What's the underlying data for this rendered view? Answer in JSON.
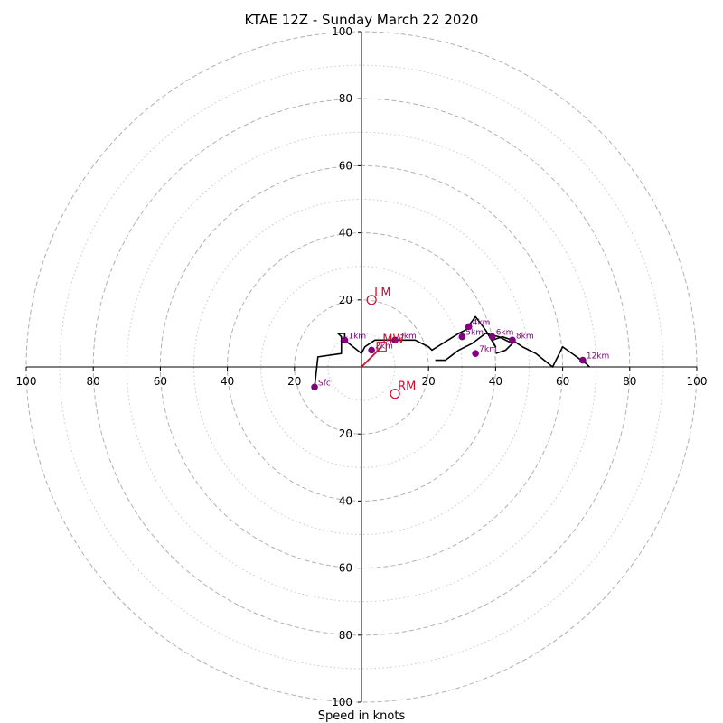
{
  "chart_data": {
    "type": "hodograph",
    "title": "KTAE 12Z - Sunday March 22 2020",
    "xlabel": "Speed in knots",
    "range_knots": [
      0,
      100
    ],
    "ring_major": [
      20,
      40,
      60,
      80,
      100
    ],
    "ring_minor": [
      10,
      30,
      50,
      70,
      90
    ],
    "tick_labels": {
      "left": [
        "100",
        "80",
        "60",
        "40",
        "20"
      ],
      "right": [
        "20",
        "40",
        "60",
        "80",
        "100"
      ],
      "top": [
        "100",
        "80",
        "60",
        "40",
        "20"
      ],
      "bottom": [
        "20",
        "40",
        "60",
        "80",
        "100"
      ]
    },
    "colors": {
      "trace": "#000000",
      "height_marker": "#800080",
      "motion": "#c8102e",
      "ring_major": "#b0b0b0",
      "ring_minor": "#c8c8c8"
    },
    "hodograph_trace": [
      [
        -14,
        -6
      ],
      [
        -13,
        3
      ],
      [
        -6,
        4
      ],
      [
        -6,
        9
      ],
      [
        -7,
        10
      ],
      [
        -5,
        10
      ],
      [
        -5,
        8
      ],
      [
        0,
        4
      ],
      [
        1,
        6
      ],
      [
        4,
        8
      ],
      [
        8,
        8
      ],
      [
        14,
        8
      ],
      [
        16,
        8
      ],
      [
        20,
        6
      ],
      [
        21,
        5
      ],
      [
        29,
        10
      ],
      [
        31,
        11
      ],
      [
        34,
        15
      ],
      [
        37,
        11
      ],
      [
        40,
        6
      ],
      [
        39,
        8
      ],
      [
        42,
        9
      ],
      [
        45,
        8
      ],
      [
        48,
        6
      ],
      [
        52,
        4
      ],
      [
        57,
        0
      ],
      [
        60,
        6
      ],
      [
        67,
        1
      ],
      [
        68,
        0
      ]
    ],
    "height_markers": [
      {
        "label": "Sfc",
        "u": -14,
        "v": -6
      },
      {
        "label": "1km",
        "u": -5,
        "v": 8
      },
      {
        "label": "2km",
        "u": 3,
        "v": 5
      },
      {
        "label": "3km",
        "u": 10,
        "v": 8
      },
      {
        "label": "4km",
        "u": 32,
        "v": 12
      },
      {
        "label": "5km",
        "u": 30,
        "v": 9
      },
      {
        "label": "6km",
        "u": 39,
        "v": 9
      },
      {
        "label": "7km",
        "u": 34,
        "v": 4
      },
      {
        "label": "8km",
        "u": 45,
        "v": 8
      },
      {
        "label": "12km",
        "u": 66,
        "v": 2
      }
    ],
    "storm_motions": [
      {
        "label": "LM",
        "u": 3,
        "v": 20
      },
      {
        "label": "RM",
        "u": 10,
        "v": -8
      },
      {
        "label": "MW",
        "u": 6,
        "v": 6
      }
    ],
    "extra_trace": [
      [
        40,
        4
      ],
      [
        43,
        5
      ],
      [
        45,
        7
      ],
      [
        41,
        9
      ],
      [
        37,
        10
      ],
      [
        33,
        7
      ],
      [
        29,
        5
      ],
      [
        25,
        2
      ],
      [
        22,
        2
      ]
    ],
    "shear_vector": {
      "from": [
        0,
        0
      ],
      "to": [
        6,
        6
      ]
    }
  }
}
